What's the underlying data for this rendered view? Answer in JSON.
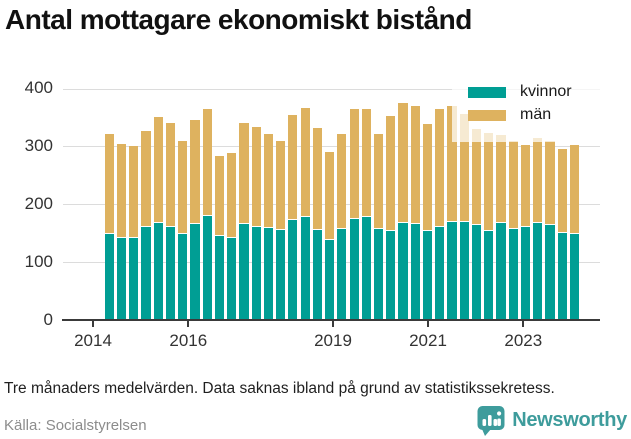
{
  "title": "Antal mottagare ekonomiskt bistånd",
  "legend": {
    "items": [
      {
        "label": "kvinnor",
        "color": "#009E94"
      },
      {
        "label": "män",
        "color": "#DEB25F"
      }
    ]
  },
  "y_axis": {
    "tick_labels": [
      "0",
      "100",
      "200",
      "300",
      "400"
    ],
    "tick_values": [
      0,
      100,
      200,
      300,
      400
    ]
  },
  "x_axis": {
    "tick_labels": [
      "2014",
      "2016",
      "2019",
      "2021",
      "2023"
    ]
  },
  "footnote": "Tre månaders medelvärden. Data saknas ibland på grund av statistikssekretess.",
  "source": "Källa: Socialstyrelsen",
  "brand": "Newsworthy",
  "colors": {
    "kvinnor": "#009E94",
    "man": "#DEB25F",
    "brand_teal": "#3e9c9c",
    "axis": "#3a3a3a",
    "grid": "#dcdcdc"
  },
  "chart_data": {
    "type": "bar",
    "stacked": true,
    "title": "Antal mottagare ekonomiskt bistånd",
    "x": [
      "2014Q2",
      "2014Q3",
      "2014Q4",
      "2015Q1",
      "2015Q2",
      "2015Q3",
      "2015Q4",
      "2016Q1",
      "2016Q2",
      "2016Q3",
      "2016Q4",
      "2017Q1",
      "2017Q2",
      "2017Q3",
      "2017Q4",
      "2018Q1",
      "2018Q2",
      "2018Q3",
      "2018Q4",
      "2019Q1",
      "2019Q2",
      "2019Q3",
      "2019Q4",
      "2020Q1",
      "2020Q2",
      "2020Q3",
      "2020Q4",
      "2021Q1",
      "2021Q2",
      "2021Q3",
      "2021Q4",
      "2022Q1",
      "2022Q2",
      "2022Q3",
      "2022Q4",
      "2023Q1",
      "2023Q2",
      "2023Q3",
      "2023Q4"
    ],
    "series": [
      {
        "name": "kvinnor",
        "color": "#009E94",
        "values": [
          149,
          142,
          142,
          160,
          168,
          161,
          148,
          166,
          179,
          145,
          141,
          166,
          161,
          159,
          155,
          172,
          178,
          156,
          138,
          157,
          174,
          178,
          157,
          153,
          167,
          166,
          153,
          161,
          170,
          170,
          165,
          153,
          167,
          157,
          160,
          167,
          165,
          150,
          148
        ]
      },
      {
        "name": "män",
        "color": "#DEB25F",
        "values": [
          173,
          163,
          159,
          167,
          183,
          179,
          161,
          179,
          186,
          138,
          148,
          174,
          172,
          162,
          154,
          182,
          189,
          175,
          152,
          165,
          190,
          187,
          165,
          199,
          208,
          204,
          185,
          203,
          199,
          186,
          165,
          171,
          153,
          152,
          143,
          148,
          145,
          145,
          154
        ]
      }
    ],
    "ylim": [
      0,
      400
    ],
    "grid": true,
    "legend_position": "top-right",
    "xlabel": "",
    "ylabel": ""
  }
}
